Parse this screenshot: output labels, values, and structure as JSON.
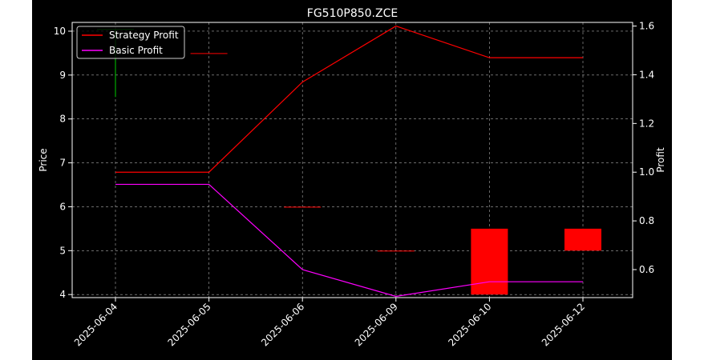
{
  "chart_data": {
    "type": "candlestick+line",
    "title": "FG510P850.ZCE",
    "xlabel": "",
    "ylabel": "Price",
    "y2label": "Profit",
    "categories": [
      "2025-06-04",
      "2025-06-05",
      "2025-06-06",
      "2025-06-09",
      "2025-06-10",
      "2025-06-12"
    ],
    "candles": [
      {
        "date": "2025-06-04",
        "open": 10.05,
        "close": 10.05,
        "high": 10.05,
        "low": 8.5,
        "color": "#00cc00"
      },
      {
        "date": "2025-06-05",
        "open": 9.5,
        "close": 9.5,
        "high": 9.5,
        "low": 9.5,
        "color": "#ff0000"
      },
      {
        "date": "2025-06-06",
        "open": 6.0,
        "close": 6.0,
        "high": 6.0,
        "low": 6.0,
        "color": "#ff0000"
      },
      {
        "date": "2025-06-09",
        "open": 5.0,
        "close": 5.0,
        "high": 5.0,
        "low": 5.0,
        "color": "#ff0000"
      },
      {
        "date": "2025-06-10",
        "open": 5.5,
        "close": 4.0,
        "high": 5.5,
        "low": 4.0,
        "color": "#ff0000"
      },
      {
        "date": "2025-06-12",
        "open": 5.5,
        "close": 5.0,
        "high": 5.5,
        "low": 5.0,
        "color": "#ff0000"
      }
    ],
    "series": [
      {
        "name": "Strategy Profit",
        "color": "#ff0000",
        "values": [
          1.0,
          1.0,
          1.37,
          1.6,
          1.47,
          1.47
        ]
      },
      {
        "name": "Basic Profit",
        "color": "#ff00ff",
        "values": [
          0.95,
          0.95,
          0.6,
          0.49,
          0.55,
          0.55
        ]
      }
    ],
    "ylim": [
      3.93,
      10.2
    ],
    "y2lim": [
      0.485,
      1.615
    ],
    "yticks": [
      "4",
      "5",
      "6",
      "7",
      "8",
      "9",
      "10"
    ],
    "y2ticks": [
      "0.6",
      "0.8",
      "1.0",
      "1.2",
      "1.4",
      "1.6"
    ],
    "grid": true,
    "legend_position": "top-left",
    "background": "#000000",
    "axis_color": "#ffffff"
  }
}
